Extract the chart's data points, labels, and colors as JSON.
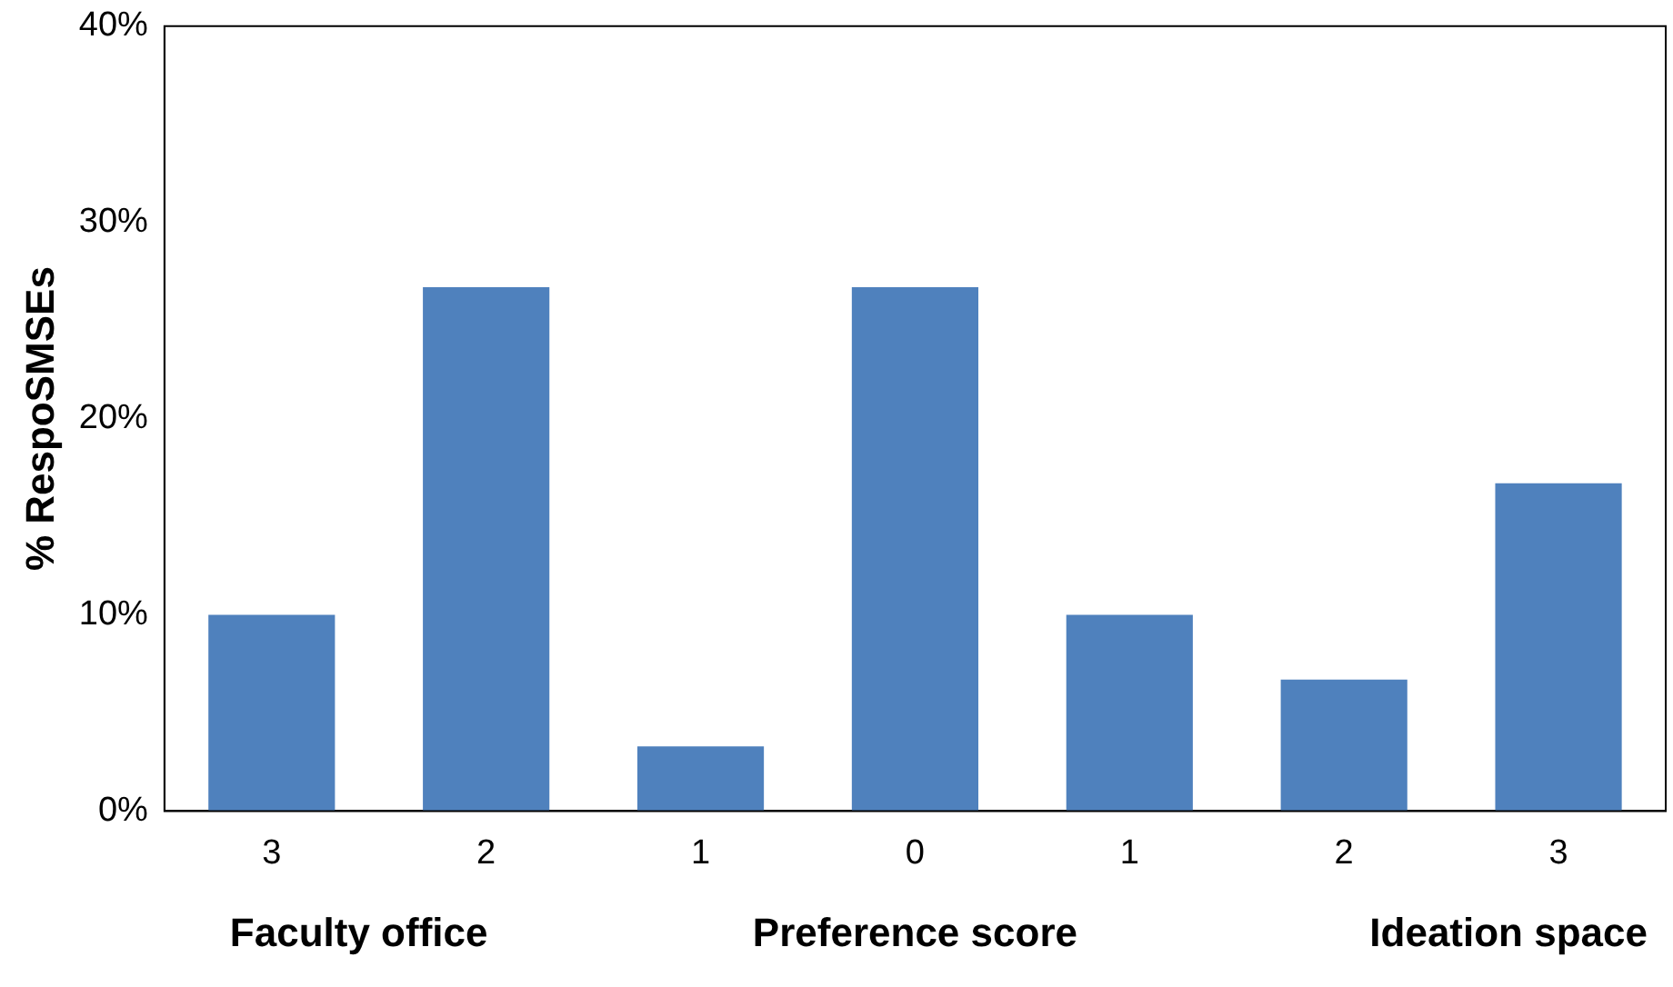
{
  "chart_data": {
    "type": "bar",
    "ylabel": "% RespoSMSEs",
    "xlabel": "Preference score",
    "categories": [
      "3",
      "2",
      "1",
      "0",
      "1",
      "2",
      "3"
    ],
    "values": [
      10,
      26.7,
      3.3,
      26.7,
      10,
      6.7,
      16.7
    ],
    "color": "#4f81bd",
    "ylim": [
      0,
      40
    ],
    "yticks": [
      {
        "value": 0,
        "label": "0%"
      },
      {
        "value": 10,
        "label": "10%"
      },
      {
        "value": 20,
        "label": "20%"
      },
      {
        "value": 30,
        "label": "30%"
      },
      {
        "value": 40,
        "label": "40%"
      }
    ],
    "grid": false,
    "legend": false,
    "annotations": [
      "Faculty office",
      "Ideation space"
    ]
  }
}
